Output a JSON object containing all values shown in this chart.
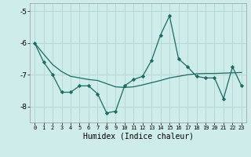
{
  "xlabel": "Humidex (Indice chaleur)",
  "bg_color": "#ceecea",
  "grid_color": "#b8d8d5",
  "line_color": "#1a6b60",
  "x_values": [
    0,
    1,
    2,
    3,
    4,
    5,
    6,
    7,
    8,
    9,
    10,
    11,
    12,
    13,
    14,
    15,
    16,
    17,
    18,
    19,
    20,
    21,
    22,
    23
  ],
  "y_series1": [
    -6.0,
    -6.6,
    -7.0,
    -7.55,
    -7.55,
    -7.35,
    -7.35,
    -7.6,
    -8.2,
    -8.15,
    -7.35,
    -7.15,
    -7.05,
    -6.55,
    -5.75,
    -5.15,
    -6.5,
    -6.75,
    -7.05,
    -7.1,
    -7.1,
    -7.75,
    -6.75,
    -7.35
  ],
  "y_series2": [
    -6.0,
    -6.35,
    -6.68,
    -6.9,
    -7.05,
    -7.1,
    -7.15,
    -7.18,
    -7.28,
    -7.38,
    -7.4,
    -7.38,
    -7.32,
    -7.25,
    -7.18,
    -7.1,
    -7.05,
    -7.0,
    -6.97,
    -6.96,
    -6.96,
    -6.95,
    -6.94,
    -6.93
  ],
  "ylim": [
    -8.5,
    -4.75
  ],
  "yticks": [
    -8,
    -7,
    -6,
    -5
  ],
  "xlim": [
    -0.5,
    23.5
  ]
}
